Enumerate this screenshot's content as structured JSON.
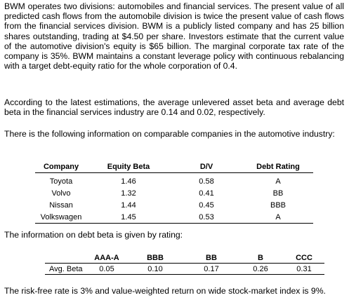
{
  "paragraphs": {
    "intro": "BWM operates two divisions: automobiles and financial services. The present value of all predicted cash flows from the automobile division is twice the present value of cash flows from the financial services division. BWM is a publicly listed company and has 25 billion shares outstanding, trading at $4.50 per share. Investors estimate that the current value of the automotive division's equity is $65 billion. The marginal corporate tax rate of the company is 35%. BWM maintains a constant leverage policy with continuous rebalancing with a target debt-equity ratio for the whole corporation of 0.4.",
    "estimations": "According to the latest estimations, the average unlevered asset beta and average debt beta in the financial services industry are 0.14 and 0.02, respectively.",
    "comparables_intro": "There is the following information on comparable companies in the automotive industry:",
    "rating_intro": "The information on debt beta is given by rating:",
    "rates": "The risk-free rate is 3% and value-weighted return on wide stock-market index is 9%."
  },
  "comparables_table": {
    "headers": [
      "Company",
      "Equity Beta",
      "D/V",
      "Debt Rating"
    ],
    "rows": [
      [
        "Toyota",
        "1.46",
        "0.58",
        "A"
      ],
      [
        "Volvo",
        "1.32",
        "0.41",
        "BB"
      ],
      [
        "Nissan",
        "1.44",
        "0.45",
        "BBB"
      ],
      [
        "Volkswagen",
        "1.45",
        "0.53",
        "A"
      ]
    ]
  },
  "rating_table": {
    "headers": [
      "",
      "AAA-A",
      "BBB",
      "BB",
      "B",
      "CCC"
    ],
    "rows": [
      [
        "Avg. Beta",
        "0.05",
        "0.10",
        "0.17",
        "0.26",
        "0.31"
      ]
    ]
  }
}
